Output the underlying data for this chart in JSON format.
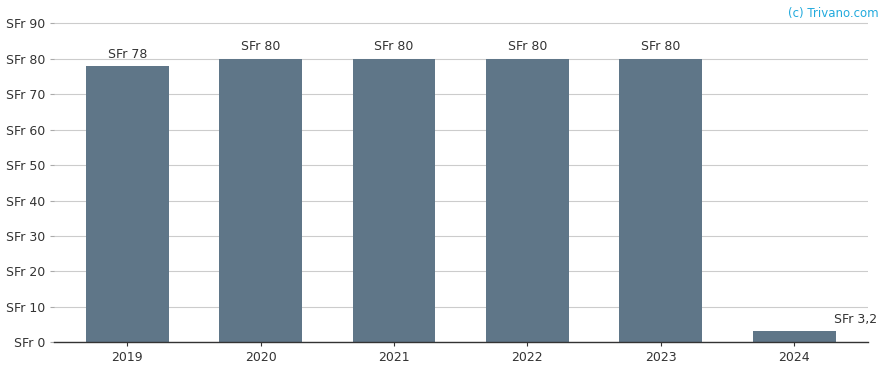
{
  "categories": [
    "2019",
    "2020",
    "2021",
    "2022",
    "2023",
    "2024"
  ],
  "values": [
    78,
    80,
    80,
    80,
    80,
    3.2
  ],
  "bar_color": "#5f7688",
  "bar_labels": [
    "SFr 78",
    "SFr 80",
    "SFr 80",
    "SFr 80",
    "SFr 80",
    "SFr 3,2"
  ],
  "yticks": [
    0,
    10,
    20,
    30,
    40,
    50,
    60,
    70,
    80,
    90
  ],
  "ytick_labels": [
    "SFr 0",
    "SFr 10",
    "SFr 20",
    "SFr 30",
    "SFr 40",
    "SFr 50",
    "SFr 60",
    "SFr 70",
    "SFr 80",
    "SFr 90"
  ],
  "ylim": [
    0,
    95
  ],
  "background_color": "#ffffff",
  "grid_color": "#cccccc",
  "bar_label_fontsize": 9.0,
  "tick_fontsize": 9.0,
  "watermark": "(c) Trivano.com",
  "watermark_color": "#22aadd",
  "watermark_fontsize": 8.5,
  "bar_width": 0.62
}
